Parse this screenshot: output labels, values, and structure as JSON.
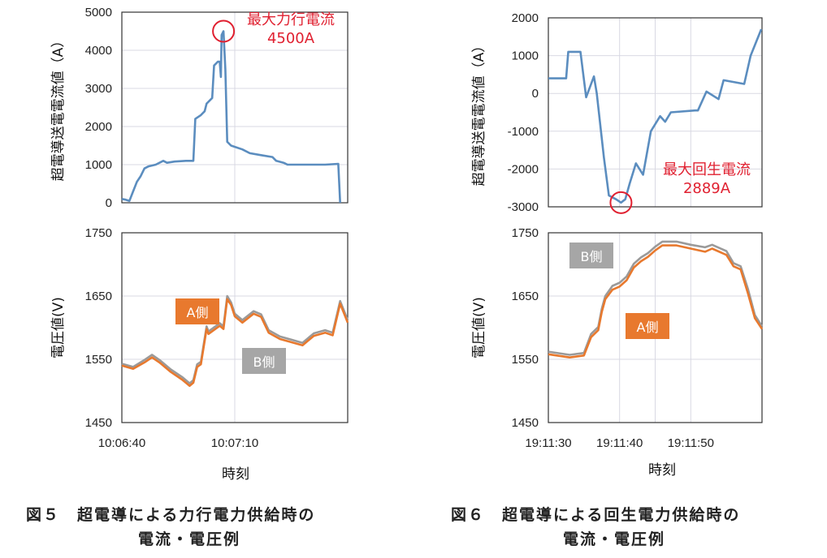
{
  "chart_data": [
    {
      "id": "fig5-current",
      "type": "line",
      "ylabel": "超電導送電電流値（A）",
      "ylim": [
        0,
        5000
      ],
      "yticks": [
        0,
        1000,
        2000,
        3000,
        4000,
        5000
      ],
      "xlim": [
        0,
        60
      ],
      "annotation": {
        "label": "最大力行電流",
        "value": "4500A",
        "x": 27,
        "y": 4500
      },
      "series": [
        {
          "name": "current",
          "color": "#5b8dbf",
          "x": [
            0,
            1,
            2,
            3,
            4,
            5,
            6,
            7,
            9,
            11,
            12,
            14,
            17,
            19,
            19.5,
            21,
            22,
            22.5,
            24,
            24.5,
            25.5,
            26,
            26.3,
            26.5,
            27,
            27.5,
            28,
            29,
            32,
            34,
            37,
            40,
            41,
            43,
            44,
            48,
            51,
            54,
            57.5,
            58
          ],
          "y": [
            100,
            80,
            50,
            300,
            550,
            700,
            900,
            950,
            1000,
            1100,
            1050,
            1080,
            1100,
            1100,
            2200,
            2300,
            2400,
            2600,
            2750,
            3600,
            3700,
            3700,
            3300,
            4400,
            4500,
            3500,
            1600,
            1500,
            1400,
            1300,
            1250,
            1200,
            1100,
            1050,
            1000,
            1000,
            1000,
            1000,
            1020,
            0
          ]
        }
      ]
    },
    {
      "id": "fig5-voltage",
      "type": "line",
      "ylabel": "電圧値(V)",
      "xlabel": "時刻",
      "ylim": [
        1450,
        1750
      ],
      "yticks": [
        1450,
        1550,
        1650,
        1750
      ],
      "xlim": [
        0,
        60
      ],
      "xticks": [
        {
          "v": 0,
          "label": "10:06:40"
        },
        {
          "v": 30,
          "label": "10:07:10"
        }
      ],
      "series": [
        {
          "name": "A側",
          "color": "#e8792e",
          "label_bg": "#e8792e",
          "x": [
            0,
            3,
            6,
            8,
            10,
            13,
            16,
            18,
            19,
            20,
            21,
            22.5,
            23,
            26,
            27,
            28,
            29,
            30,
            32,
            35,
            37,
            39,
            42,
            45,
            48,
            51,
            54,
            56,
            58,
            60
          ],
          "y": [
            1540,
            1535,
            1545,
            1553,
            1545,
            1530,
            1518,
            1508,
            1513,
            1538,
            1542,
            1598,
            1590,
            1603,
            1598,
            1645,
            1636,
            1618,
            1608,
            1622,
            1617,
            1592,
            1582,
            1577,
            1572,
            1587,
            1592,
            1588,
            1638,
            1608
          ]
        },
        {
          "name": "B側",
          "color": "#9a9a9a",
          "label_bg": "#a6a6a6",
          "x": [
            0,
            3,
            6,
            8,
            10,
            13,
            16,
            18,
            19,
            20,
            21,
            22.5,
            23,
            26,
            27,
            28,
            29,
            30,
            32,
            35,
            37,
            39,
            42,
            45,
            48,
            51,
            54,
            56,
            58,
            60
          ],
          "y": [
            1543,
            1538,
            1549,
            1557,
            1549,
            1534,
            1522,
            1512,
            1517,
            1542,
            1546,
            1602,
            1594,
            1607,
            1602,
            1650,
            1640,
            1622,
            1612,
            1626,
            1621,
            1596,
            1586,
            1581,
            1576,
            1591,
            1596,
            1592,
            1642,
            1612
          ]
        }
      ]
    },
    {
      "id": "fig6-current",
      "type": "line",
      "ylabel": "超電導送電電流値（A）",
      "ylim": [
        -3000,
        2000
      ],
      "yticks": [
        -3000,
        -2000,
        -1000,
        0,
        1000,
        2000
      ],
      "xlim": [
        0,
        30
      ],
      "annotation": {
        "label": "最大回生電流",
        "value": "2889A",
        "x": 10.2,
        "y": -2889
      },
      "series": [
        {
          "name": "current",
          "color": "#5b8dbf",
          "x": [
            0,
            2.5,
            2.8,
            4.5,
            5.3,
            6.4,
            6.8,
            7.8,
            8.5,
            9.5,
            10.2,
            10.8,
            11.4,
            12.3,
            13.3,
            14.4,
            15.7,
            16.4,
            17.2,
            20.6,
            21,
            22.2,
            23.9,
            24.6,
            27.5,
            28.4,
            29.9
          ],
          "y": [
            400,
            400,
            1100,
            1100,
            -100,
            450,
            0,
            -1700,
            -2700,
            -2800,
            -2889,
            -2800,
            -2400,
            -1850,
            -2150,
            -1000,
            -600,
            -750,
            -500,
            -450,
            -450,
            50,
            -150,
            350,
            250,
            1000,
            1700
          ]
        }
      ]
    },
    {
      "id": "fig6-voltage",
      "type": "line",
      "ylabel": "電圧値(V)",
      "xlabel": "時刻",
      "ylim": [
        1450,
        1750
      ],
      "yticks": [
        1450,
        1550,
        1650,
        1750
      ],
      "xlim": [
        0,
        30
      ],
      "xticks": [
        {
          "v": 0,
          "label": "19:11:30"
        },
        {
          "v": 10,
          "label": "19:11:40"
        },
        {
          "v": 20,
          "label": "19:11:50"
        }
      ],
      "series": [
        {
          "name": "A側",
          "color": "#e8792e",
          "label_bg": "#e8792e",
          "x": [
            0,
            3,
            5,
            6,
            7,
            7.5,
            8,
            9,
            10,
            11,
            12,
            13,
            14,
            15,
            16,
            18,
            20,
            22,
            23,
            25,
            26,
            27,
            28,
            29,
            30
          ],
          "y": [
            1558,
            1553,
            1556,
            1585,
            1596,
            1625,
            1645,
            1660,
            1665,
            1675,
            1695,
            1705,
            1712,
            1722,
            1730,
            1730,
            1725,
            1720,
            1725,
            1715,
            1697,
            1692,
            1655,
            1615,
            1598
          ]
        },
        {
          "name": "B側",
          "color": "#9a9a9a",
          "label_bg": "#a6a6a6",
          "x": [
            0,
            3,
            5,
            6,
            7,
            7.5,
            8,
            9,
            10,
            11,
            12,
            13,
            14,
            15,
            16,
            18,
            20,
            22,
            23,
            25,
            26,
            27,
            28,
            29,
            30
          ],
          "y": [
            1562,
            1557,
            1560,
            1590,
            1601,
            1630,
            1650,
            1666,
            1671,
            1681,
            1701,
            1711,
            1718,
            1728,
            1736,
            1736,
            1731,
            1727,
            1731,
            1721,
            1702,
            1697,
            1662,
            1620,
            1602
          ]
        }
      ]
    }
  ],
  "captions": {
    "fig5_line1": "図５　超電導による力行電力供給時の",
    "fig5_line2": "電流・電圧例",
    "fig6_line1": "図６　超電導による回生電力供給時の",
    "fig6_line2": "電流・電圧例"
  }
}
